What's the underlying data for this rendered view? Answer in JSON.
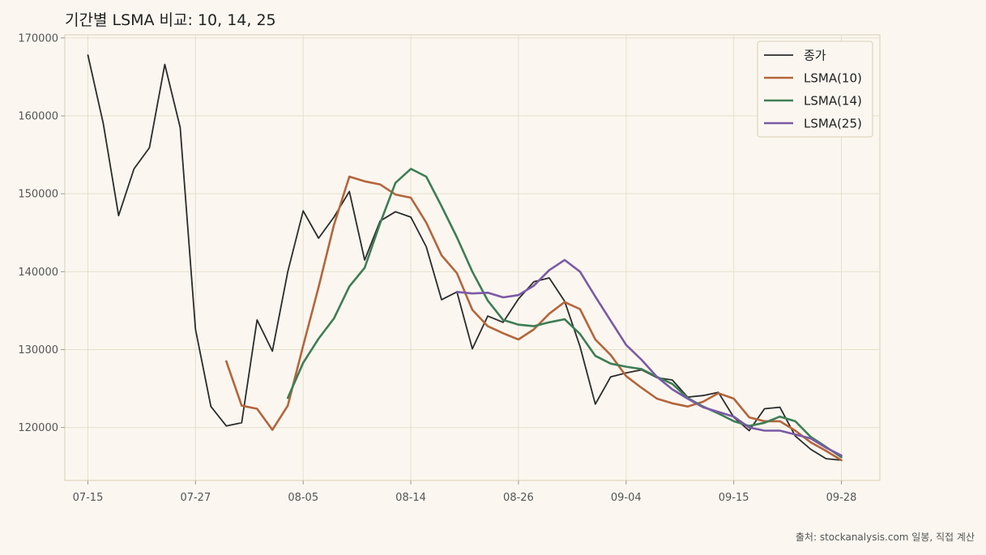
{
  "chart_data": {
    "type": "line",
    "title": "기간별 LSMA 비교: 10, 14, 25",
    "source": "출처: stockanalysis.com 일봉, 직접 계산",
    "xlabel": "",
    "ylabel": "",
    "ylim": [
      113200,
      170400
    ],
    "xlim": [
      -1.5,
      51.5
    ],
    "yticks": [
      120000,
      130000,
      140000,
      150000,
      160000,
      170000
    ],
    "yticklabels": [
      "120000",
      "130000",
      "140000",
      "150000",
      "160000",
      "170000"
    ],
    "xticks": [
      {
        "i": 0,
        "label": "07-15"
      },
      {
        "i": 7,
        "label": "07-27"
      },
      {
        "i": 14,
        "label": "08-05"
      },
      {
        "i": 21,
        "label": "08-14"
      },
      {
        "i": 28,
        "label": "08-26"
      },
      {
        "i": 35,
        "label": "09-04"
      },
      {
        "i": 42,
        "label": "09-15"
      },
      {
        "i": 49,
        "label": "09-28"
      }
    ],
    "grid": true,
    "legend_position": "top-right",
    "series": [
      {
        "name": "종가",
        "color": "#2b2b2b",
        "start": 0,
        "values": [
          167800,
          159000,
          147200,
          153200,
          155900,
          166600,
          158500,
          132600,
          122700,
          120200,
          120600,
          133800,
          129800,
          140000,
          147800,
          144300,
          147000,
          150300,
          141500,
          146500,
          147700,
          147000,
          143200,
          136400,
          137400,
          130100,
          134300,
          133500,
          136500,
          138700,
          139200,
          136200,
          130400,
          123000,
          126500,
          127000,
          127400,
          126400,
          126100,
          123900,
          124100,
          124500,
          121300,
          119600,
          122400,
          122600,
          118900,
          117200,
          116000,
          115800
        ]
      },
      {
        "name": "LSMA(10)",
        "color": "#b4653c",
        "start": 9,
        "values": [
          128500,
          122800,
          122400,
          119700,
          122800,
          130500,
          138000,
          146000,
          152200,
          151600,
          151200,
          149900,
          149500,
          146300,
          142100,
          139800,
          135100,
          133000,
          132100,
          131300,
          132600,
          134600,
          136100,
          135200,
          131300,
          129300,
          126600,
          125100,
          123700,
          123100,
          122700,
          123300,
          124400,
          123700,
          121300,
          120800,
          120800,
          119600,
          118100,
          117000,
          115800
        ]
      },
      {
        "name": "LSMA(14)",
        "color": "#3e7d55",
        "start": 13,
        "values": [
          123800,
          128300,
          131400,
          134000,
          138100,
          140500,
          146200,
          151400,
          153200,
          152200,
          148400,
          144400,
          140000,
          136300,
          133800,
          133200,
          133000,
          133500,
          133900,
          132000,
          129200,
          128200,
          127800,
          127500,
          126500,
          125600,
          123800,
          122700,
          121800,
          120800,
          120200,
          120600,
          121400,
          120800,
          118800,
          117500,
          116200
        ]
      },
      {
        "name": "LSMA(25)",
        "color": "#7a5aa6",
        "start": 24,
        "values": [
          137400,
          137200,
          137300,
          136700,
          137000,
          138200,
          140200,
          141500,
          140000,
          136800,
          133700,
          130600,
          128700,
          126500,
          124900,
          123700,
          122600,
          122000,
          121400,
          120000,
          119600,
          119600,
          119100,
          118600,
          117400,
          116400
        ]
      }
    ]
  }
}
